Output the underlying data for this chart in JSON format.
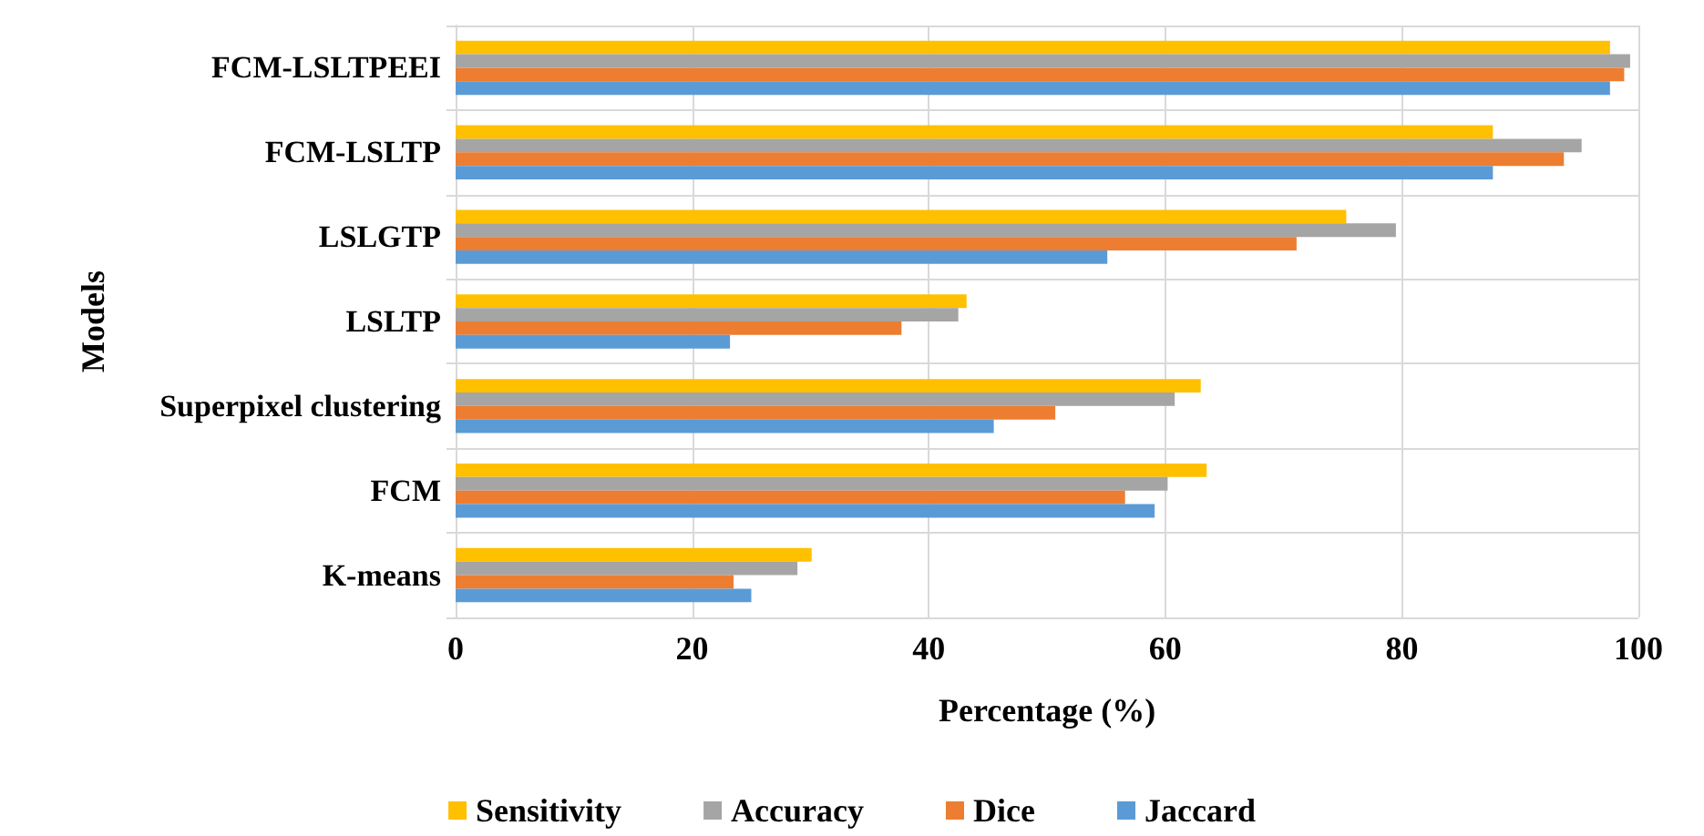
{
  "chart_data": {
    "type": "bar",
    "orientation": "horizontal",
    "xlabel": "Percentage (%)",
    "ylabel": "Models",
    "categories": [
      "FCM-LSLTPEEI",
      "FCM-LSLTP",
      "LSLGTP",
      "LSLTP",
      "Superpixel clustering",
      "FCM",
      "K-means"
    ],
    "series": [
      {
        "name": "Sensitivity",
        "color": "#ffc000",
        "values": [
          97.6,
          87.7,
          75.3,
          43.2,
          63.0,
          63.5,
          30.1
        ]
      },
      {
        "name": "Accuracy",
        "color": "#a5a5a5",
        "values": [
          99.3,
          95.2,
          79.5,
          42.5,
          60.8,
          60.2,
          28.9
        ]
      },
      {
        "name": "Dice",
        "color": "#ed7d31",
        "values": [
          98.8,
          93.7,
          71.1,
          37.7,
          50.7,
          56.6,
          23.5
        ]
      },
      {
        "name": "Jaccard",
        "color": "#5b9bd5",
        "values": [
          97.6,
          87.7,
          55.1,
          23.2,
          45.5,
          59.1,
          25.0
        ]
      }
    ],
    "xlim": [
      0,
      100
    ],
    "xticks": [
      0,
      20,
      40,
      60,
      80,
      100
    ],
    "grid": true,
    "legend": "bottom"
  }
}
